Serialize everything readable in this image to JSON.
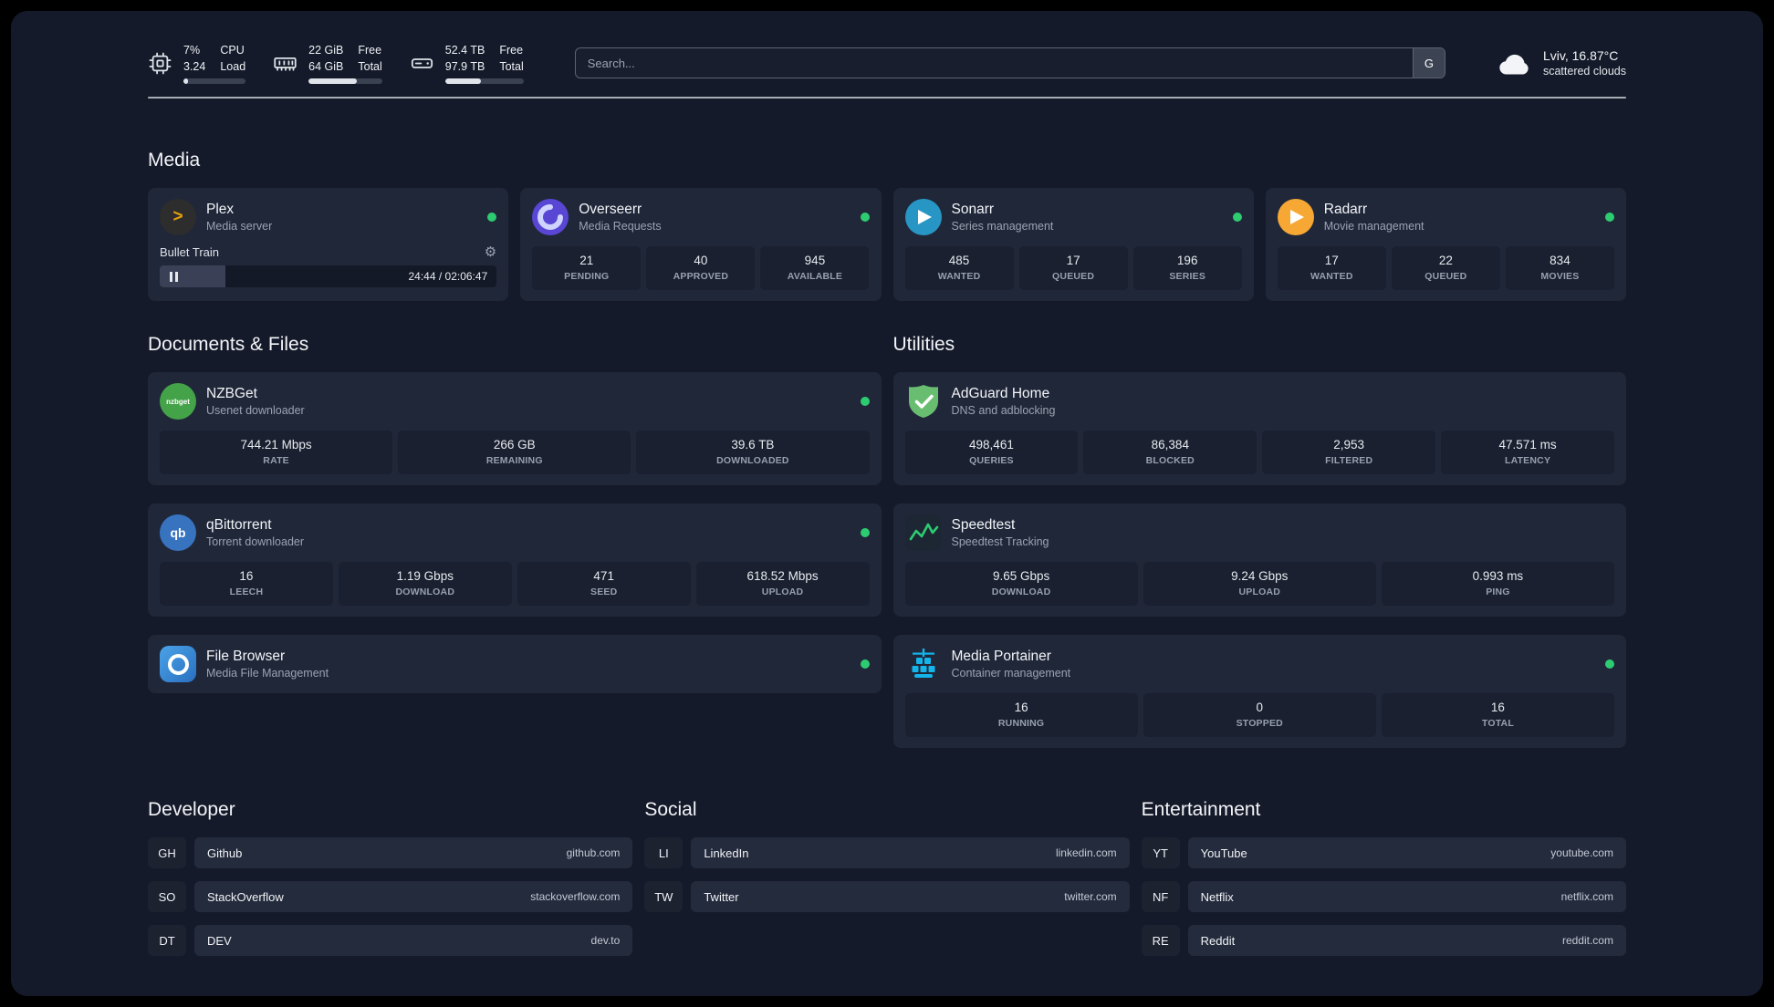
{
  "topbar": {
    "cpu": {
      "percent": "7%",
      "load_value": "3.24",
      "label_top": "CPU",
      "label_bottom": "Load",
      "bar_percent": 8
    },
    "ram": {
      "free_value": "22 GiB",
      "total_value": "64 GiB",
      "free_label": "Free",
      "total_label": "Total",
      "bar_percent": 66
    },
    "disk": {
      "free_value": "52.4 TB",
      "total_value": "97.9 TB",
      "free_label": "Free",
      "total_label": "Total",
      "bar_percent": 46
    },
    "search": {
      "placeholder": "Search...",
      "button": "G"
    },
    "weather": {
      "line1": "Lviv, 16.87°C",
      "line2": "scattered clouds"
    }
  },
  "sections": {
    "media": {
      "title": "Media",
      "plex": {
        "name": "Plex",
        "subtitle": "Media server",
        "icon_glyph": ">",
        "now_playing": "Bullet Train",
        "gear_icon": "⚙",
        "time": "24:44 / 02:06:47",
        "progress_percent": 19.5
      },
      "overseerr": {
        "name": "Overseerr",
        "subtitle": "Media Requests",
        "stats": [
          {
            "value": "21",
            "label": "PENDING"
          },
          {
            "value": "40",
            "label": "APPROVED"
          },
          {
            "value": "945",
            "label": "AVAILABLE"
          }
        ]
      },
      "sonarr": {
        "name": "Sonarr",
        "subtitle": "Series management",
        "stats": [
          {
            "value": "485",
            "label": "WANTED"
          },
          {
            "value": "17",
            "label": "QUEUED"
          },
          {
            "value": "196",
            "label": "SERIES"
          }
        ]
      },
      "radarr": {
        "name": "Radarr",
        "subtitle": "Movie management",
        "stats": [
          {
            "value": "17",
            "label": "WANTED"
          },
          {
            "value": "22",
            "label": "QUEUED"
          },
          {
            "value": "834",
            "label": "MOVIES"
          }
        ]
      }
    },
    "documents": {
      "title": "Documents & Files",
      "nzbget": {
        "name": "NZBGet",
        "subtitle": "Usenet downloader",
        "icon_text": "nzbget",
        "stats": [
          {
            "value": "744.21 Mbps",
            "label": "RATE"
          },
          {
            "value": "266 GB",
            "label": "REMAINING"
          },
          {
            "value": "39.6 TB",
            "label": "DOWNLOADED"
          }
        ]
      },
      "qbittorrent": {
        "name": "qBittorrent",
        "subtitle": "Torrent downloader",
        "icon_text": "qb",
        "stats": [
          {
            "value": "16",
            "label": "LEECH"
          },
          {
            "value": "1.19 Gbps",
            "label": "DOWNLOAD"
          },
          {
            "value": "471",
            "label": "SEED"
          },
          {
            "value": "618.52 Mbps",
            "label": "UPLOAD"
          }
        ]
      },
      "filebrowser": {
        "name": "File Browser",
        "subtitle": "Media File Management"
      }
    },
    "utilities": {
      "title": "Utilities",
      "adguard": {
        "name": "AdGuard Home",
        "subtitle": "DNS and adblocking",
        "stats": [
          {
            "value": "498,461",
            "label": "QUERIES"
          },
          {
            "value": "86,384",
            "label": "BLOCKED"
          },
          {
            "value": "2,953",
            "label": "FILTERED"
          },
          {
            "value": "47.571 ms",
            "label": "LATENCY"
          }
        ]
      },
      "speedtest": {
        "name": "Speedtest",
        "subtitle": "Speedtest Tracking",
        "stats": [
          {
            "value": "9.65 Gbps",
            "label": "DOWNLOAD"
          },
          {
            "value": "9.24 Gbps",
            "label": "UPLOAD"
          },
          {
            "value": "0.993 ms",
            "label": "PING"
          }
        ]
      },
      "portainer": {
        "name": "Media Portainer",
        "subtitle": "Container management",
        "stats": [
          {
            "value": "16",
            "label": "RUNNING"
          },
          {
            "value": "0",
            "label": "STOPPED"
          },
          {
            "value": "16",
            "label": "TOTAL"
          }
        ]
      }
    }
  },
  "bookmarks": {
    "developer": {
      "title": "Developer",
      "items": [
        {
          "abbr": "GH",
          "name": "Github",
          "url": "github.com"
        },
        {
          "abbr": "SO",
          "name": "StackOverflow",
          "url": "stackoverflow.com"
        },
        {
          "abbr": "DT",
          "name": "DEV",
          "url": "dev.to"
        }
      ]
    },
    "social": {
      "title": "Social",
      "items": [
        {
          "abbr": "LI",
          "name": "LinkedIn",
          "url": "linkedin.com"
        },
        {
          "abbr": "TW",
          "name": "Twitter",
          "url": "twitter.com"
        }
      ]
    },
    "entertainment": {
      "title": "Entertainment",
      "items": [
        {
          "abbr": "YT",
          "name": "YouTube",
          "url": "youtube.com"
        },
        {
          "abbr": "NF",
          "name": "Netflix",
          "url": "netflix.com"
        },
        {
          "abbr": "RE",
          "name": "Reddit",
          "url": "reddit.com"
        }
      ]
    }
  }
}
